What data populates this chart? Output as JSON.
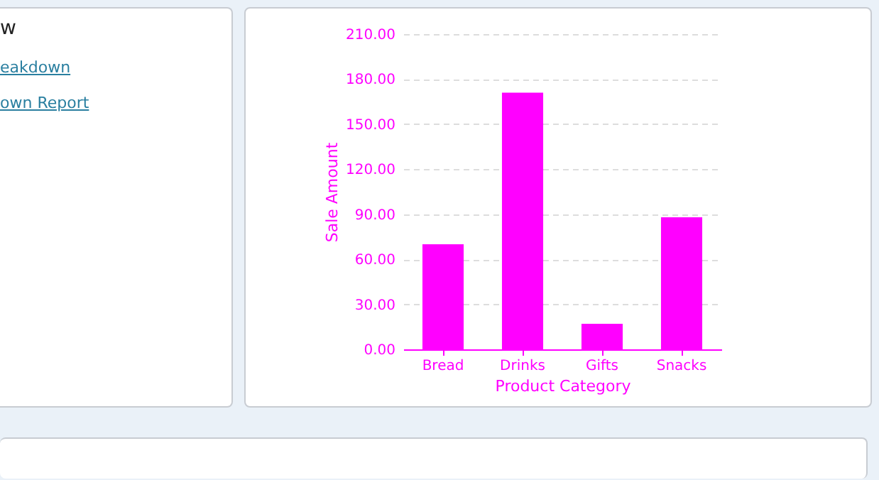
{
  "chart_data": {
    "type": "bar",
    "xlabel": "Product Category",
    "ylabel": "Sale Amount",
    "categories": [
      "Bread",
      "Drinks",
      "Gifts",
      "Snacks"
    ],
    "values": [
      70,
      171,
      17,
      88
    ],
    "color": "#ff00ff",
    "ylim": [
      0,
      210
    ],
    "yticks": [
      {
        "value": 0,
        "label": "0.00"
      },
      {
        "value": 30,
        "label": "30.00"
      },
      {
        "value": 60,
        "label": "60.00"
      },
      {
        "value": 90,
        "label": "90.00"
      },
      {
        "value": 120,
        "label": "120.00"
      },
      {
        "value": 150,
        "label": "150.00"
      },
      {
        "value": 180,
        "label": "180.00"
      },
      {
        "value": 210,
        "label": "210.00"
      }
    ],
    "grid": "y",
    "annotations": [
      "w",
      "eakdown",
      "own Report"
    ]
  }
}
